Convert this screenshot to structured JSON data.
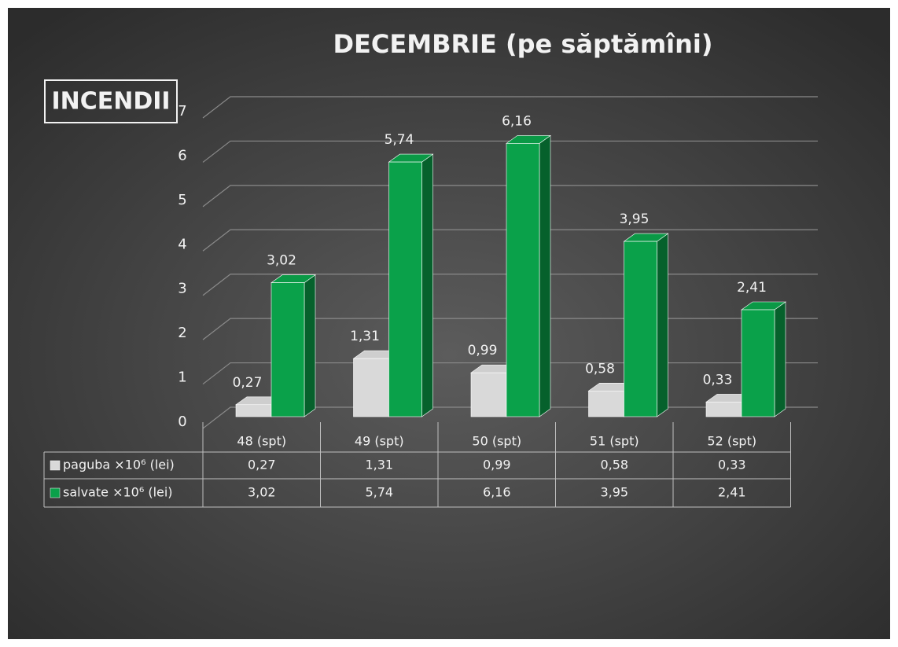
{
  "chart_data": {
    "type": "bar3d",
    "title": "DECEMBRIE  (pe săptămîni)",
    "label_box": "INCENDII",
    "categories": [
      "48 (spt)",
      "49 (spt)",
      "50 (spt)",
      "51 (spt)",
      "52 (spt)"
    ],
    "series": [
      {
        "name": "paguba ×10⁶ (lei)",
        "color": "#d9d9d9",
        "values": [
          0.27,
          1.31,
          0.99,
          0.58,
          0.33
        ],
        "value_labels": [
          "0,27",
          "1,31",
          "0,99",
          "0,58",
          "0,33"
        ]
      },
      {
        "name": "salvate ×10⁶ (lei)",
        "color": "#0aa14a",
        "values": [
          3.02,
          5.74,
          6.16,
          3.95,
          2.41
        ],
        "value_labels": [
          "3,02",
          "5,74",
          "6,16",
          "3,95",
          "2,41"
        ]
      }
    ],
    "ylim": [
      0,
      7
    ],
    "yticks": [
      0,
      1,
      2,
      3,
      4,
      5,
      6,
      7
    ],
    "grid": true,
    "data_table": true
  }
}
